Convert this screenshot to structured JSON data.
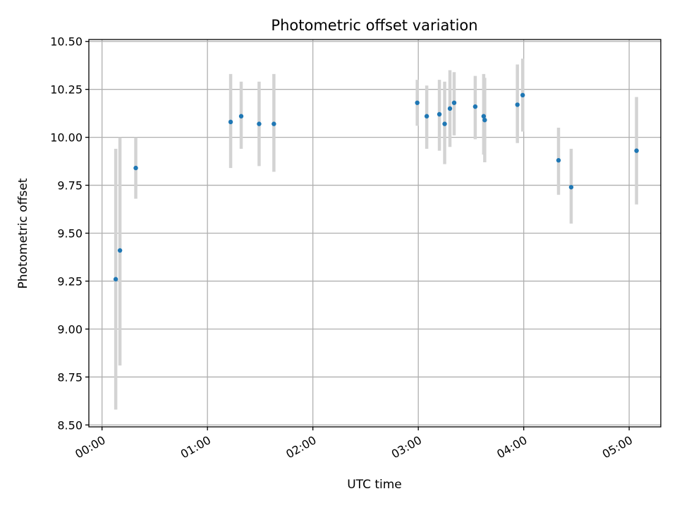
{
  "chart_data": {
    "type": "scatter",
    "title": "Photometric offset variation",
    "xlabel": "UTC time",
    "ylabel": "Photometric offset",
    "xlim": [
      -0.125,
      5.3
    ],
    "ylim": [
      8.49,
      10.51
    ],
    "grid": true,
    "x_ticks": [
      {
        "value": 0,
        "label": "00:00"
      },
      {
        "value": 1,
        "label": "01:00"
      },
      {
        "value": 2,
        "label": "02:00"
      },
      {
        "value": 3,
        "label": "03:00"
      },
      {
        "value": 4,
        "label": "04:00"
      },
      {
        "value": 5,
        "label": "05:00"
      }
    ],
    "y_ticks": [
      {
        "value": 8.5,
        "label": "8.50"
      },
      {
        "value": 8.75,
        "label": "8.75"
      },
      {
        "value": 9.0,
        "label": "9.00"
      },
      {
        "value": 9.25,
        "label": "9.25"
      },
      {
        "value": 9.5,
        "label": "9.50"
      },
      {
        "value": 9.75,
        "label": "9.75"
      },
      {
        "value": 10.0,
        "label": "10.00"
      },
      {
        "value": 10.25,
        "label": "10.25"
      },
      {
        "value": 10.5,
        "label": "10.50"
      }
    ],
    "point_color": "#1f77b4",
    "errorbar_color": "#d3d3d3",
    "series": [
      {
        "name": "offset",
        "points": [
          {
            "x": 0.13,
            "y": 9.26,
            "low": 8.58,
            "high": 9.94
          },
          {
            "x": 0.17,
            "y": 9.41,
            "low": 8.81,
            "high": 10.0
          },
          {
            "x": 0.32,
            "y": 9.84,
            "low": 9.68,
            "high": 10.0
          },
          {
            "x": 1.22,
            "y": 10.08,
            "low": 9.84,
            "high": 10.33
          },
          {
            "x": 1.32,
            "y": 10.11,
            "low": 9.94,
            "high": 10.29
          },
          {
            "x": 1.49,
            "y": 10.07,
            "low": 9.85,
            "high": 10.29
          },
          {
            "x": 1.63,
            "y": 10.07,
            "low": 9.82,
            "high": 10.33
          },
          {
            "x": 2.99,
            "y": 10.18,
            "low": 10.06,
            "high": 10.3
          },
          {
            "x": 3.08,
            "y": 10.11,
            "low": 9.94,
            "high": 10.27
          },
          {
            "x": 3.2,
            "y": 10.12,
            "low": 9.93,
            "high": 10.3
          },
          {
            "x": 3.25,
            "y": 10.07,
            "low": 9.86,
            "high": 10.29
          },
          {
            "x": 3.3,
            "y": 10.15,
            "low": 9.95,
            "high": 10.35
          },
          {
            "x": 3.34,
            "y": 10.18,
            "low": 10.01,
            "high": 10.34
          },
          {
            "x": 3.54,
            "y": 10.16,
            "low": 9.99,
            "high": 10.32
          },
          {
            "x": 3.62,
            "y": 10.11,
            "low": 9.91,
            "high": 10.33
          },
          {
            "x": 3.63,
            "y": 10.09,
            "low": 9.87,
            "high": 10.31
          },
          {
            "x": 3.94,
            "y": 10.17,
            "low": 9.97,
            "high": 10.38
          },
          {
            "x": 3.99,
            "y": 10.22,
            "low": 10.03,
            "high": 10.41
          },
          {
            "x": 4.33,
            "y": 9.88,
            "low": 9.7,
            "high": 10.05
          },
          {
            "x": 4.45,
            "y": 9.74,
            "low": 9.55,
            "high": 9.94
          },
          {
            "x": 5.07,
            "y": 9.93,
            "low": 9.65,
            "high": 10.21
          }
        ]
      }
    ]
  }
}
